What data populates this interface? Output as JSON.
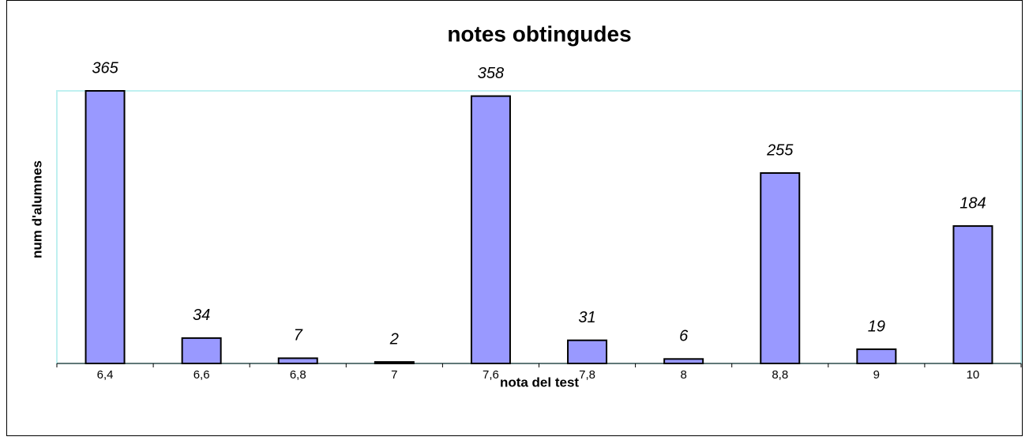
{
  "chart_data": {
    "type": "bar",
    "title": "notes obtingudes",
    "x_label": "nota del test",
    "y_label": "num d'alumnes",
    "categories": [
      "6,4",
      "6,6",
      "6,8",
      "7",
      "7,6",
      "7,8",
      "8",
      "8,8",
      "9",
      "10"
    ],
    "values": [
      365,
      34,
      7,
      2,
      358,
      31,
      6,
      255,
      19,
      184
    ],
    "color": "#9999ff",
    "ylim": [
      0,
      365
    ]
  }
}
